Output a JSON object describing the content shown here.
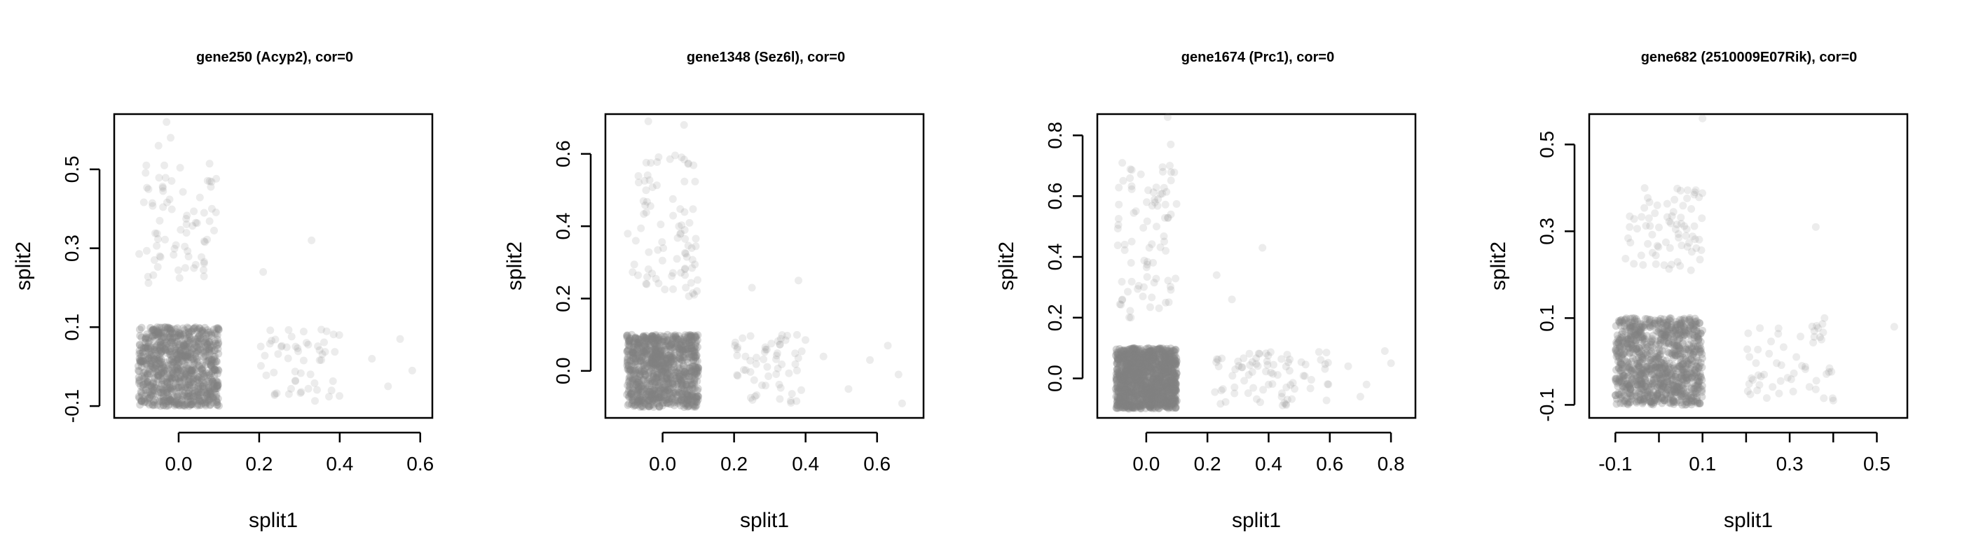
{
  "chart_data": [
    {
      "type": "scatter",
      "title": "gene250 (Acyp2), cor=0",
      "xlabel": "split1",
      "ylabel": "split2",
      "xlim": [
        -0.16,
        0.63
      ],
      "ylim": [
        -0.13,
        0.64
      ],
      "xticks": [
        0.0,
        0.2,
        0.4,
        0.6
      ],
      "xtick_labels": [
        "0.0",
        "0.2",
        "0.4",
        "0.6"
      ],
      "yticks": [
        -0.1,
        0.1,
        0.3,
        0.5
      ],
      "ytick_labels": [
        "-0.1",
        "0.1",
        "0.3",
        "0.5"
      ],
      "point_color": "#808080",
      "clusters": [
        {
          "xrange": [
            -0.1,
            0.1
          ],
          "yrange": [
            -0.1,
            0.1
          ],
          "n": 900,
          "opacity": 0.3
        },
        {
          "xrange": [
            -0.1,
            0.1
          ],
          "yrange": [
            0.2,
            0.52
          ],
          "n": 75,
          "opacity": 0.15
        },
        {
          "xrange": [
            0.2,
            0.4
          ],
          "yrange": [
            -0.09,
            0.1
          ],
          "n": 55,
          "opacity": 0.15
        }
      ],
      "points": [
        [
          -0.03,
          0.62
        ],
        [
          -0.05,
          0.56
        ],
        [
          -0.02,
          0.58
        ],
        [
          0.33,
          0.32
        ],
        [
          0.21,
          0.24
        ],
        [
          0.48,
          0.02
        ],
        [
          0.55,
          0.07
        ],
        [
          0.58,
          -0.01
        ],
        [
          0.52,
          -0.05
        ]
      ]
    },
    {
      "type": "scatter",
      "title": "gene1348 (Sez6l), cor=0",
      "xlabel": "split1",
      "ylabel": "split2",
      "xlim": [
        -0.16,
        0.73
      ],
      "ylim": [
        -0.13,
        0.71
      ],
      "xticks": [
        0.0,
        0.2,
        0.4,
        0.6
      ],
      "xtick_labels": [
        "0.0",
        "0.2",
        "0.4",
        "0.6"
      ],
      "yticks": [
        0.0,
        0.2,
        0.4,
        0.6
      ],
      "ytick_labels": [
        "0.0",
        "0.2",
        "0.4",
        "0.6"
      ],
      "point_color": "#808080",
      "clusters": [
        {
          "xrange": [
            -0.1,
            0.1
          ],
          "yrange": [
            -0.1,
            0.1
          ],
          "n": 950,
          "opacity": 0.3
        },
        {
          "xrange": [
            -0.1,
            0.1
          ],
          "yrange": [
            0.2,
            0.6
          ],
          "n": 85,
          "opacity": 0.15
        },
        {
          "xrange": [
            0.2,
            0.4
          ],
          "yrange": [
            -0.09,
            0.1
          ],
          "n": 60,
          "opacity": 0.15
        }
      ],
      "points": [
        [
          -0.04,
          0.69
        ],
        [
          0.06,
          0.68
        ],
        [
          0.38,
          0.25
        ],
        [
          0.25,
          0.23
        ],
        [
          0.45,
          0.04
        ],
        [
          0.52,
          -0.05
        ],
        [
          0.58,
          0.03
        ],
        [
          0.63,
          0.07
        ],
        [
          0.66,
          -0.01
        ],
        [
          0.67,
          -0.09
        ]
      ]
    },
    {
      "type": "scatter",
      "title": "gene1674 (Prc1), cor=0",
      "xlabel": "split1",
      "ylabel": "split2",
      "xlim": [
        -0.16,
        0.88
      ],
      "ylim": [
        -0.13,
        0.87
      ],
      "xticks": [
        0.0,
        0.2,
        0.4,
        0.6,
        0.8
      ],
      "xtick_labels": [
        "0.0",
        "0.2",
        "0.4",
        "0.6",
        "0.8"
      ],
      "yticks": [
        0.0,
        0.2,
        0.4,
        0.6,
        0.8
      ],
      "ytick_labels": [
        "0.0",
        "0.2",
        "0.4",
        "0.6",
        "0.8"
      ],
      "point_color": "#808080",
      "clusters": [
        {
          "xrange": [
            -0.1,
            0.1
          ],
          "yrange": [
            -0.1,
            0.1
          ],
          "n": 1100,
          "opacity": 0.35
        },
        {
          "xrange": [
            -0.1,
            0.1
          ],
          "yrange": [
            0.2,
            0.72
          ],
          "n": 85,
          "opacity": 0.15
        },
        {
          "xrange": [
            0.2,
            0.6
          ],
          "yrange": [
            -0.09,
            0.09
          ],
          "n": 80,
          "opacity": 0.15
        }
      ],
      "points": [
        [
          0.07,
          0.86
        ],
        [
          0.08,
          0.77
        ],
        [
          0.38,
          0.43
        ],
        [
          0.23,
          0.34
        ],
        [
          0.28,
          0.26
        ],
        [
          0.66,
          0.04
        ],
        [
          0.72,
          -0.02
        ],
        [
          0.78,
          0.09
        ],
        [
          0.8,
          0.05
        ],
        [
          0.7,
          -0.06
        ]
      ]
    },
    {
      "type": "scatter",
      "title": "gene682 (2510009E07Rik), cor=0",
      "xlabel": "split1",
      "ylabel": "split2",
      "xlim": [
        -0.16,
        0.57
      ],
      "ylim": [
        -0.13,
        0.57
      ],
      "xticks": [
        -0.1,
        0.1,
        0.3,
        0.5
      ],
      "xtick_labels": [
        "-0.1",
        "0.1",
        "0.3",
        "0.5"
      ],
      "xticks_minor": [
        0.0,
        0.2,
        0.4
      ],
      "yticks": [
        -0.1,
        0.1,
        0.3,
        0.5
      ],
      "ytick_labels": [
        "-0.1",
        "0.1",
        "0.3",
        "0.5"
      ],
      "point_color": "#808080",
      "clusters": [
        {
          "xrange": [
            -0.1,
            0.1
          ],
          "yrange": [
            -0.1,
            0.1
          ],
          "n": 950,
          "opacity": 0.3
        },
        {
          "xrange": [
            -0.08,
            0.1
          ],
          "yrange": [
            0.2,
            0.4
          ],
          "n": 75,
          "opacity": 0.15
        },
        {
          "xrange": [
            0.2,
            0.4
          ],
          "yrange": [
            -0.09,
            0.09
          ],
          "n": 55,
          "opacity": 0.15
        }
      ],
      "points": [
        [
          0.1,
          0.56
        ],
        [
          0.36,
          0.31
        ],
        [
          0.54,
          0.08
        ],
        [
          0.4,
          -0.09
        ],
        [
          0.38,
          0.1
        ]
      ]
    }
  ]
}
